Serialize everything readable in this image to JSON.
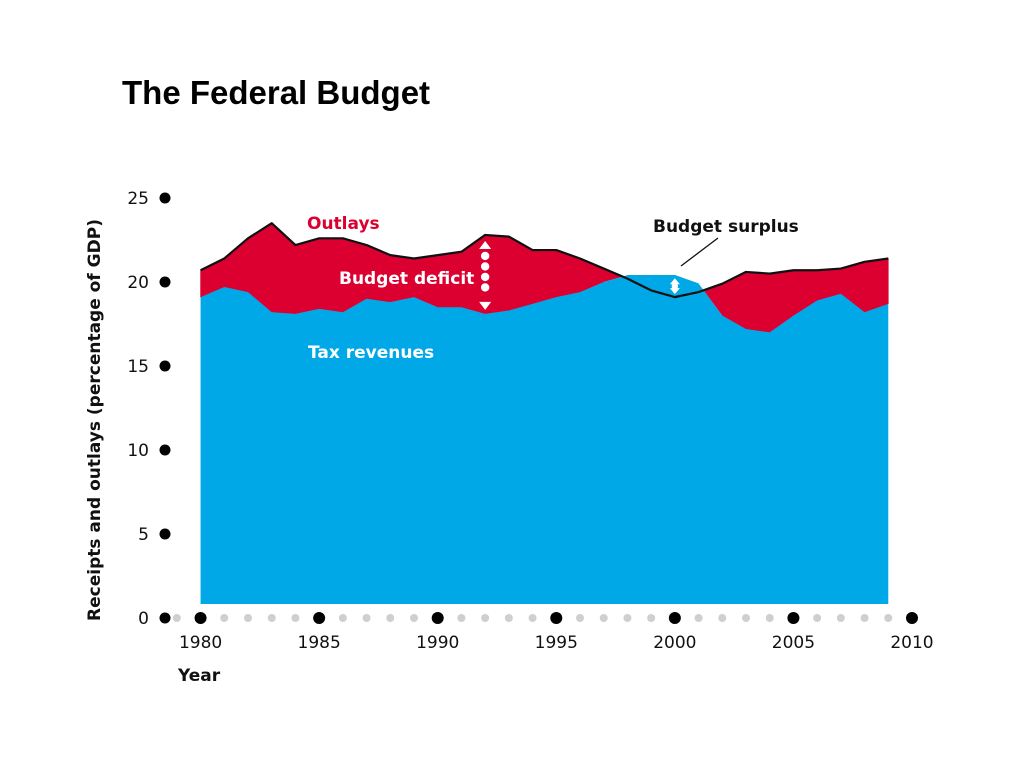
{
  "title": "The Federal Budget",
  "chart_data": {
    "type": "area",
    "xlabel": "Year",
    "ylabel": "Receipts and outlays (percentage of GDP)",
    "xlim": [
      1978.5,
      2010
    ],
    "ylim": [
      0,
      25
    ],
    "x_ticks": [
      1980,
      1985,
      1990,
      1995,
      2000,
      2005,
      2010
    ],
    "y_ticks": [
      0,
      5,
      10,
      15,
      20,
      25
    ],
    "x": [
      1980,
      1981,
      1982,
      1983,
      1984,
      1985,
      1986,
      1987,
      1988,
      1989,
      1990,
      1991,
      1992,
      1993,
      1994,
      1995,
      1996,
      1997,
      1998,
      1999,
      2000,
      2001,
      2002,
      2003,
      2004,
      2005,
      2006,
      2007,
      2008,
      2009
    ],
    "series": [
      {
        "name": "Outlays",
        "values": [
          20.7,
          21.4,
          22.6,
          23.5,
          22.2,
          22.6,
          22.6,
          22.2,
          21.6,
          21.4,
          21.6,
          21.8,
          22.8,
          22.7,
          21.9,
          21.9,
          21.4,
          20.8,
          20.2,
          19.5,
          19.1,
          19.4,
          19.9,
          20.6,
          20.5,
          20.7,
          20.7,
          20.8,
          21.2,
          21.4
        ]
      },
      {
        "name": "Tax revenues",
        "values": [
          19.1,
          19.7,
          19.4,
          18.2,
          18.1,
          18.4,
          18.2,
          19.0,
          18.8,
          19.1,
          18.5,
          18.5,
          18.1,
          18.3,
          18.7,
          19.1,
          19.4,
          20.0,
          20.4,
          20.4,
          20.4,
          19.9,
          18.0,
          17.2,
          17.0,
          18.0,
          18.9,
          19.3,
          18.2,
          18.7
        ]
      }
    ],
    "annotations": {
      "outlays": "Outlays",
      "deficit": "Budget deficit",
      "surplus": "Budget surplus",
      "revenues": "Tax revenues"
    },
    "colors": {
      "revenues": "#00a8e8",
      "deficit": "#dc0030",
      "surplus": "#1aa5a0",
      "line": "#111111",
      "dot_major": "#000000",
      "dot_minor": "#cfcfcf",
      "annotation_text": "#ffffff",
      "outlays_text": "#dc0030"
    },
    "grid": false,
    "legend": "none"
  }
}
